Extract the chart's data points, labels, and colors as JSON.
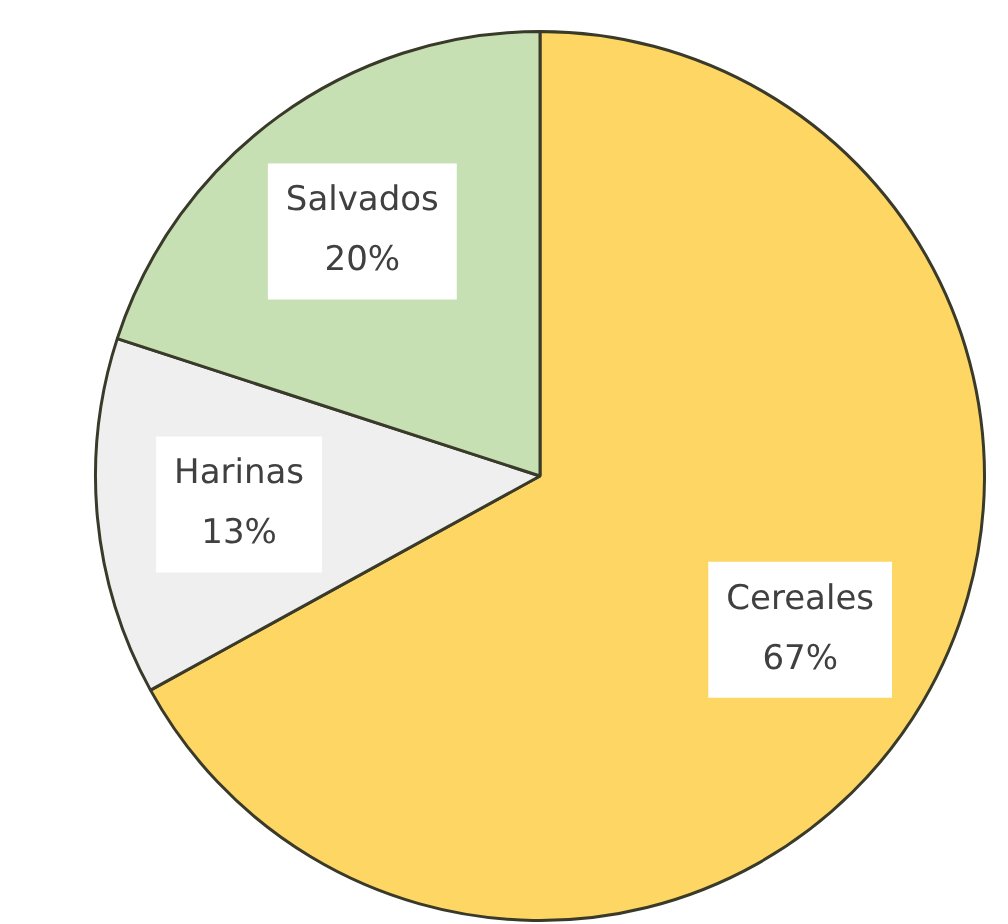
{
  "chart_data": {
    "type": "pie",
    "categories": [
      "Cereales",
      "Harinas",
      "Salvados"
    ],
    "values": [
      67,
      13,
      20
    ],
    "value_labels": [
      "67%",
      "13%",
      "20%"
    ],
    "colors": [
      "#fdd663",
      "#efefef",
      "#c6e0b4"
    ],
    "legend": false
  }
}
